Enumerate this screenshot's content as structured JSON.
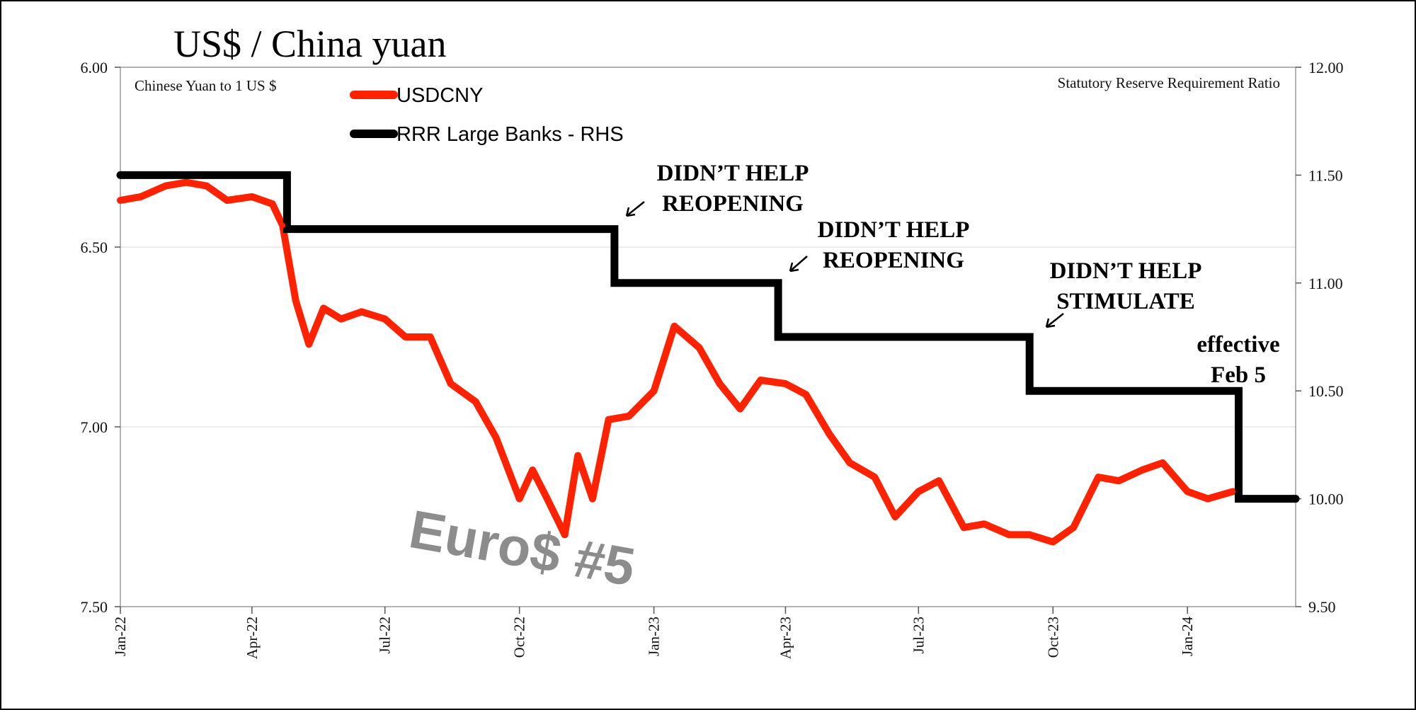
{
  "chart_data": {
    "type": "line",
    "title": "US$ / China yuan",
    "left_axis_label": "Chinese Yuan to 1 US $",
    "right_axis_label": "Statutory Reserve Requirement Ratio",
    "left_axis": {
      "min": 6.0,
      "max": 7.5,
      "inverted": true,
      "ticks": [
        "6.00",
        "6.50",
        "7.00",
        "7.50"
      ]
    },
    "right_axis": {
      "min": 9.5,
      "max": 12.0,
      "ticks": [
        "12.00",
        "11.50",
        "11.00",
        "10.50",
        "10.00",
        "9.50"
      ]
    },
    "x_ticks": [
      "Jan-22",
      "Apr-22",
      "Jul-22",
      "Oct-22",
      "Jan-23",
      "Apr-23",
      "Jul-23",
      "Oct-23",
      "Jan-24"
    ],
    "x_range": [
      "2022-01-01",
      "2024-03-15"
    ],
    "gridlines": "horizontal",
    "legend_placement": "top-left",
    "colors": {
      "usdcny": "#ff2200",
      "rrr": "#000000",
      "grid": "#d9d9d9",
      "watermark": "#8c8c8c"
    },
    "series": [
      {
        "name": "USDCNY",
        "axis": "left",
        "x": [
          "2022-01-01",
          "2022-01-15",
          "2022-02-01",
          "2022-02-15",
          "2022-03-01",
          "2022-03-15",
          "2022-04-01",
          "2022-04-15",
          "2022-04-22",
          "2022-05-01",
          "2022-05-10",
          "2022-05-20",
          "2022-06-01",
          "2022-06-15",
          "2022-07-01",
          "2022-07-15",
          "2022-08-01",
          "2022-08-15",
          "2022-09-01",
          "2022-09-15",
          "2022-10-01",
          "2022-10-10",
          "2022-10-20",
          "2022-11-01",
          "2022-11-10",
          "2022-11-20",
          "2022-12-01",
          "2022-12-15",
          "2023-01-01",
          "2023-01-15",
          "2023-02-01",
          "2023-02-15",
          "2023-03-01",
          "2023-03-15",
          "2023-04-01",
          "2023-04-15",
          "2023-05-01",
          "2023-05-15",
          "2023-06-01",
          "2023-06-15",
          "2023-07-01",
          "2023-07-15",
          "2023-08-01",
          "2023-08-15",
          "2023-09-01",
          "2023-09-15",
          "2023-10-01",
          "2023-10-15",
          "2023-11-01",
          "2023-11-15",
          "2023-12-01",
          "2023-12-15",
          "2024-01-01",
          "2024-01-15",
          "2024-02-01"
        ],
        "values": [
          6.37,
          6.36,
          6.33,
          6.32,
          6.33,
          6.37,
          6.36,
          6.38,
          6.44,
          6.65,
          6.77,
          6.67,
          6.7,
          6.68,
          6.7,
          6.75,
          6.75,
          6.88,
          6.93,
          7.03,
          7.2,
          7.12,
          7.2,
          7.3,
          7.08,
          7.2,
          6.98,
          6.97,
          6.9,
          6.72,
          6.78,
          6.88,
          6.95,
          6.87,
          6.88,
          6.91,
          7.02,
          7.1,
          7.14,
          7.25,
          7.18,
          7.15,
          7.28,
          7.27,
          7.3,
          7.3,
          7.32,
          7.28,
          7.14,
          7.15,
          7.12,
          7.1,
          7.18,
          7.2,
          7.18
        ]
      },
      {
        "name": "RRR Large Banks - RHS",
        "axis": "right",
        "step": true,
        "x": [
          "2022-01-01",
          "2022-04-25",
          "2022-12-05",
          "2023-03-27",
          "2023-09-15",
          "2024-02-05",
          "2024-03-15"
        ],
        "values": [
          11.5,
          11.25,
          11.0,
          10.75,
          10.5,
          10.0,
          10.0
        ]
      }
    ],
    "annotations": [
      {
        "lines": [
          "DIDN’T HELP",
          "REOPENING"
        ],
        "x": "2022-12-05",
        "y": 11.25
      },
      {
        "lines": [
          "DIDN’T HELP",
          "REOPENING"
        ],
        "x": "2023-03-27",
        "y": 11.0
      },
      {
        "lines": [
          "DIDN’T HELP",
          "STIMULATE"
        ],
        "x": "2023-09-15",
        "y": 10.75
      },
      {
        "lines": [
          "effective",
          "Feb 5"
        ],
        "x": "2024-02-05",
        "y": 10.5
      }
    ],
    "watermark": "Euro$ #5"
  }
}
